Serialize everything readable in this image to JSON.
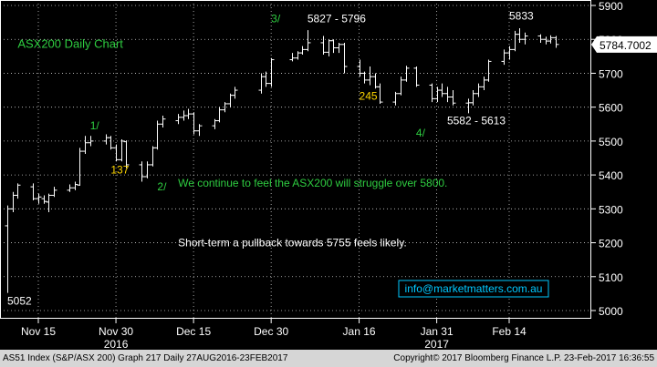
{
  "chart_data": {
    "type": "candlestick",
    "title": "ASX200 Daily Chart",
    "ylim": [
      5000,
      5900
    ],
    "y_ticks": [
      5000,
      5100,
      5200,
      5300,
      5400,
      5500,
      5600,
      5700,
      5800,
      5900
    ],
    "x_ticks": [
      {
        "label": "Nov 15",
        "date": "2016-11-15"
      },
      {
        "label": "Nov 30",
        "date": "2016-11-30"
      },
      {
        "label": "Dec 15",
        "date": "2016-12-15"
      },
      {
        "label": "Dec 30",
        "date": "2016-12-30"
      },
      {
        "label": "Jan 16",
        "date": "2017-01-16"
      },
      {
        "label": "Jan 31",
        "date": "2017-01-31"
      },
      {
        "label": "Feb 14",
        "date": "2017-02-14"
      }
    ],
    "year_labels": [
      {
        "label": "2016",
        "date": "2016-11-30"
      },
      {
        "label": "2017",
        "date": "2017-01-31"
      }
    ],
    "last_value": "5784.7002",
    "bars": [
      {
        "date": "2016-11-09",
        "open": 5250,
        "high": 5310,
        "low": 5052,
        "close": 5300
      },
      {
        "date": "2016-11-10",
        "open": 5300,
        "high": 5350,
        "low": 5290,
        "close": 5340
      },
      {
        "date": "2016-11-11",
        "open": 5340,
        "high": 5375,
        "low": 5330,
        "close": 5370
      },
      {
        "date": "2016-11-14",
        "open": 5365,
        "high": 5375,
        "low": 5325,
        "close": 5330
      },
      {
        "date": "2016-11-15",
        "open": 5330,
        "high": 5345,
        "low": 5315,
        "close": 5335
      },
      {
        "date": "2016-11-16",
        "open": 5330,
        "high": 5340,
        "low": 5315,
        "close": 5322
      },
      {
        "date": "2016-11-17",
        "open": 5320,
        "high": 5345,
        "low": 5290,
        "close": 5340
      },
      {
        "date": "2016-11-18",
        "open": 5340,
        "high": 5365,
        "low": 5335,
        "close": 5355
      },
      {
        "date": "2016-11-21",
        "open": 5355,
        "high": 5372,
        "low": 5350,
        "close": 5362
      },
      {
        "date": "2016-11-22",
        "open": 5362,
        "high": 5380,
        "low": 5355,
        "close": 5372
      },
      {
        "date": "2016-11-23",
        "open": 5370,
        "high": 5480,
        "low": 5368,
        "close": 5470
      },
      {
        "date": "2016-11-24",
        "open": 5470,
        "high": 5515,
        "low": 5462,
        "close": 5495
      },
      {
        "date": "2016-11-25",
        "open": 5495,
        "high": 5515,
        "low": 5485,
        "close": 5500
      },
      {
        "date": "2016-11-28",
        "open": 5500,
        "high": 5520,
        "low": 5490,
        "close": 5510
      },
      {
        "date": "2016-11-29",
        "open": 5510,
        "high": 5515,
        "low": 5475,
        "close": 5480
      },
      {
        "date": "2016-11-30",
        "open": 5480,
        "high": 5490,
        "low": 5440,
        "close": 5445
      },
      {
        "date": "2016-12-01",
        "open": 5445,
        "high": 5505,
        "low": 5440,
        "close": 5500
      },
      {
        "date": "2016-12-02",
        "open": 5498,
        "high": 5502,
        "low": 5420,
        "close": 5430
      },
      {
        "date": "2016-12-05",
        "open": 5430,
        "high": 5440,
        "low": 5380,
        "close": 5395
      },
      {
        "date": "2016-12-06",
        "open": 5395,
        "high": 5440,
        "low": 5390,
        "close": 5430
      },
      {
        "date": "2016-12-07",
        "open": 5430,
        "high": 5485,
        "low": 5425,
        "close": 5480
      },
      {
        "date": "2016-12-08",
        "open": 5480,
        "high": 5560,
        "low": 5475,
        "close": 5550
      },
      {
        "date": "2016-12-09",
        "open": 5550,
        "high": 5575,
        "low": 5540,
        "close": 5565
      },
      {
        "date": "2016-12-12",
        "open": 5560,
        "high": 5580,
        "low": 5550,
        "close": 5570
      },
      {
        "date": "2016-12-13",
        "open": 5570,
        "high": 5590,
        "low": 5560,
        "close": 5575
      },
      {
        "date": "2016-12-14",
        "open": 5575,
        "high": 5595,
        "low": 5565,
        "close": 5580
      },
      {
        "date": "2016-12-15",
        "open": 5580,
        "high": 5585,
        "low": 5520,
        "close": 5530
      },
      {
        "date": "2016-12-16",
        "open": 5530,
        "high": 5550,
        "low": 5515,
        "close": 5545
      },
      {
        "date": "2016-12-19",
        "open": 5545,
        "high": 5565,
        "low": 5535,
        "close": 5560
      },
      {
        "date": "2016-12-20",
        "open": 5560,
        "high": 5600,
        "low": 5555,
        "close": 5592
      },
      {
        "date": "2016-12-21",
        "open": 5592,
        "high": 5615,
        "low": 5585,
        "close": 5610
      },
      {
        "date": "2016-12-22",
        "open": 5610,
        "high": 5640,
        "low": 5600,
        "close": 5635
      },
      {
        "date": "2016-12-23",
        "open": 5635,
        "high": 5660,
        "low": 5625,
        "close": 5650
      },
      {
        "date": "2016-12-28",
        "open": 5650,
        "high": 5700,
        "low": 5640,
        "close": 5690
      },
      {
        "date": "2016-12-29",
        "open": 5690,
        "high": 5705,
        "low": 5660,
        "close": 5670
      },
      {
        "date": "2016-12-30",
        "open": 5670,
        "high": 5745,
        "low": 5660,
        "close": 5740
      },
      {
        "date": "2017-01-03",
        "open": 5740,
        "high": 5760,
        "low": 5735,
        "close": 5745
      },
      {
        "date": "2017-01-04",
        "open": 5745,
        "high": 5765,
        "low": 5740,
        "close": 5760
      },
      {
        "date": "2017-01-05",
        "open": 5760,
        "high": 5780,
        "low": 5755,
        "close": 5770
      },
      {
        "date": "2017-01-06",
        "open": 5770,
        "high": 5827,
        "low": 5765,
        "close": 5790
      },
      {
        "date": "2017-01-09",
        "open": 5790,
        "high": 5810,
        "low": 5755,
        "close": 5762
      },
      {
        "date": "2017-01-10",
        "open": 5762,
        "high": 5800,
        "low": 5750,
        "close": 5796
      },
      {
        "date": "2017-01-11",
        "open": 5796,
        "high": 5800,
        "low": 5760,
        "close": 5775
      },
      {
        "date": "2017-01-12",
        "open": 5775,
        "high": 5790,
        "low": 5760,
        "close": 5785
      },
      {
        "date": "2017-01-13",
        "open": 5785,
        "high": 5790,
        "low": 5700,
        "close": 5720
      },
      {
        "date": "2017-01-16",
        "open": 5720,
        "high": 5740,
        "low": 5690,
        "close": 5700
      },
      {
        "date": "2017-01-17",
        "open": 5700,
        "high": 5705,
        "low": 5670,
        "close": 5680
      },
      {
        "date": "2017-01-18",
        "open": 5680,
        "high": 5720,
        "low": 5665,
        "close": 5690
      },
      {
        "date": "2017-01-19",
        "open": 5690,
        "high": 5700,
        "low": 5655,
        "close": 5660
      },
      {
        "date": "2017-01-20",
        "open": 5660,
        "high": 5670,
        "low": 5610,
        "close": 5615
      },
      {
        "date": "2017-01-23",
        "open": 5615,
        "high": 5645,
        "low": 5605,
        "close": 5640
      },
      {
        "date": "2017-01-24",
        "open": 5640,
        "high": 5690,
        "low": 5635,
        "close": 5680
      },
      {
        "date": "2017-01-25",
        "open": 5680,
        "high": 5722,
        "low": 5675,
        "close": 5715
      },
      {
        "date": "2017-01-27",
        "open": 5715,
        "high": 5720,
        "low": 5660,
        "close": 5665
      },
      {
        "date": "2017-01-30",
        "open": 5665,
        "high": 5670,
        "low": 5615,
        "close": 5625
      },
      {
        "date": "2017-01-31",
        "open": 5625,
        "high": 5660,
        "low": 5615,
        "close": 5650
      },
      {
        "date": "2017-02-01",
        "open": 5650,
        "high": 5670,
        "low": 5630,
        "close": 5640
      },
      {
        "date": "2017-02-02",
        "open": 5640,
        "high": 5660,
        "low": 5615,
        "close": 5630
      },
      {
        "date": "2017-02-03",
        "open": 5630,
        "high": 5650,
        "low": 5605,
        "close": 5612
      },
      {
        "date": "2017-02-06",
        "open": 5612,
        "high": 5625,
        "low": 5582,
        "close": 5613
      },
      {
        "date": "2017-02-07",
        "open": 5613,
        "high": 5650,
        "low": 5605,
        "close": 5640
      },
      {
        "date": "2017-02-08",
        "open": 5640,
        "high": 5670,
        "low": 5630,
        "close": 5660
      },
      {
        "date": "2017-02-09",
        "open": 5660,
        "high": 5690,
        "low": 5650,
        "close": 5680
      },
      {
        "date": "2017-02-10",
        "open": 5680,
        "high": 5740,
        "low": 5675,
        "close": 5735
      },
      {
        "date": "2017-02-13",
        "open": 5735,
        "high": 5770,
        "low": 5725,
        "close": 5760
      },
      {
        "date": "2017-02-14",
        "open": 5760,
        "high": 5780,
        "low": 5740,
        "close": 5770
      },
      {
        "date": "2017-02-15",
        "open": 5770,
        "high": 5825,
        "low": 5765,
        "close": 5815
      },
      {
        "date": "2017-02-16",
        "open": 5815,
        "high": 5833,
        "low": 5790,
        "close": 5800
      },
      {
        "date": "2017-02-17",
        "open": 5800,
        "high": 5820,
        "low": 5785,
        "close": 5810
      },
      {
        "date": "2017-02-20",
        "open": 5810,
        "high": 5815,
        "low": 5790,
        "close": 5800
      },
      {
        "date": "2017-02-21",
        "open": 5800,
        "high": 5808,
        "low": 5785,
        "close": 5795
      },
      {
        "date": "2017-02-22",
        "open": 5795,
        "high": 5812,
        "low": 5788,
        "close": 5805
      },
      {
        "date": "2017-02-23",
        "open": 5805,
        "high": 5810,
        "low": 5775,
        "close": 5785
      }
    ],
    "annotations": [
      {
        "text": "ASX200 Daily Chart",
        "date": "2016-11-11",
        "y": 5775,
        "color": "#2ecc40",
        "size": 13
      },
      {
        "text": "1/",
        "date": "2016-11-25",
        "y": 5535,
        "color": "#2ecc40",
        "size": 12
      },
      {
        "text": "137",
        "date": "2016-11-29",
        "y": 5405,
        "color": "#ffd700",
        "size": 12
      },
      {
        "text": "2/",
        "date": "2016-12-08",
        "y": 5355,
        "color": "#2ecc40",
        "size": 12
      },
      {
        "text": "3/",
        "date": "2016-12-30",
        "y": 5850,
        "color": "#2ecc40",
        "size": 12
      },
      {
        "text": "5827 - 5796",
        "date": "2017-01-06",
        "y": 5850,
        "color": "#ffffff",
        "size": 12
      },
      {
        "text": "245",
        "date": "2017-01-16",
        "y": 5622,
        "color": "#ffd700",
        "size": 12
      },
      {
        "text": "4/",
        "date": "2017-01-27",
        "y": 5513,
        "color": "#2ecc40",
        "size": 12
      },
      {
        "text": "5582 - 5613",
        "date": "2017-02-02",
        "y": 5550,
        "color": "#ffffff",
        "size": 12
      },
      {
        "text": "5833",
        "date": "2017-02-14",
        "y": 5858,
        "color": "#ffffff",
        "size": 12
      },
      {
        "text": "We continue to feel the ASX200 will struggle over 5800.",
        "date": "2016-12-12",
        "y": 5365,
        "color": "#2ecc40",
        "size": 12
      },
      {
        "text": "Short-term a pullback towards 5755 feels likely.",
        "date": "2016-12-12",
        "y": 5190,
        "color": "#ffffff",
        "size": 12
      },
      {
        "text": "5052",
        "date": "2016-11-09",
        "y": 5018,
        "color": "#ffffff",
        "size": 12
      }
    ],
    "link_box": {
      "text": "info@marketmatters.com.au",
      "color": "#00c8ff"
    }
  },
  "footer": {
    "left": "AS51 Index (S&P/ASX 200) Graph 217  Daily 27AUG2016-23FEB2017",
    "right": "Copyright© 2017 Bloomberg Finance L.P.    23-Feb-2017 16:36:55"
  },
  "colors": {
    "background": "#000000",
    "axis": "#ffffff",
    "grid": "#ffffff",
    "bars": "#ffffff",
    "price_tag_bg": "#ffffff",
    "price_tag_fg": "#000000"
  }
}
